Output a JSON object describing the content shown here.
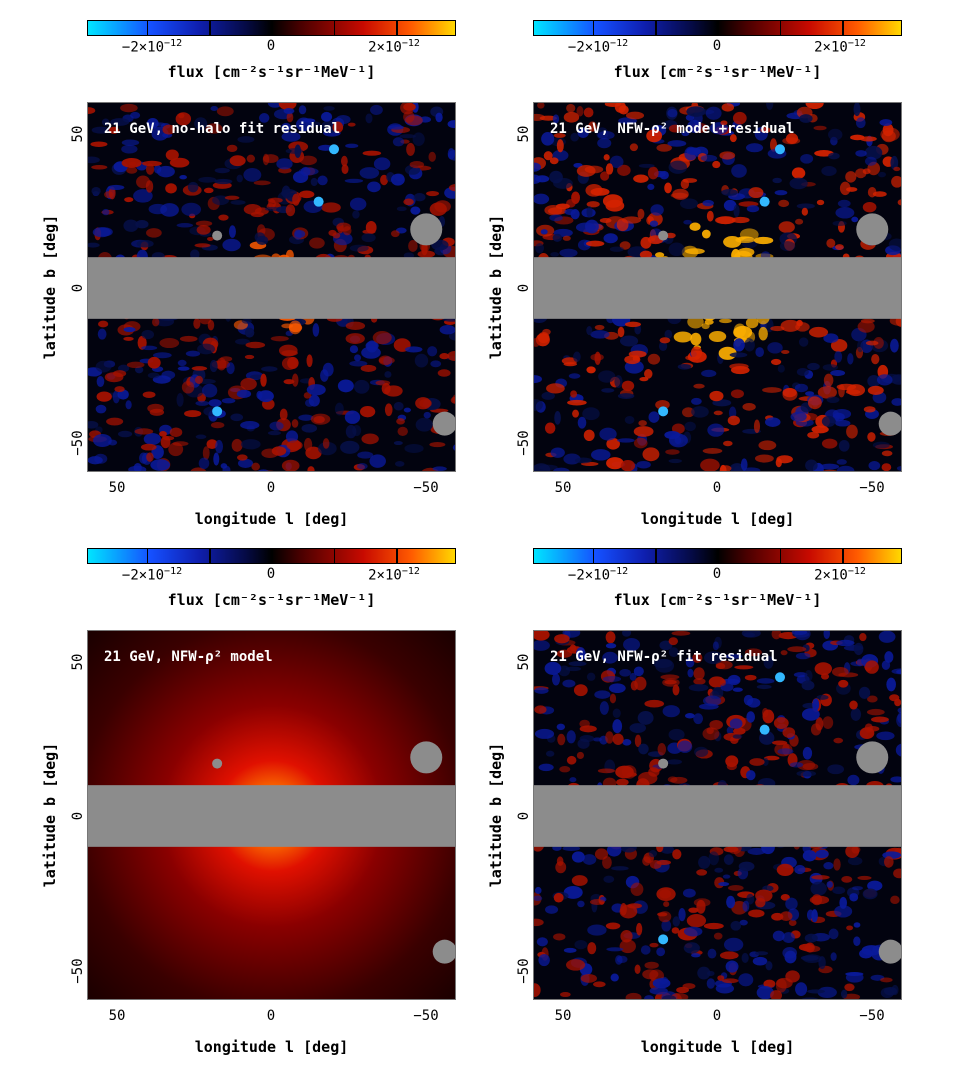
{
  "colorbar": {
    "tick_minus": "−2×10",
    "tick_zero": "0",
    "tick_plus": "2×10",
    "exponent": "−12",
    "label": "flux [cm⁻²s⁻¹sr⁻¹MeV⁻¹]"
  },
  "axes": {
    "xlabel": "longitude l [deg]",
    "ylabel": "latitude b [deg]",
    "xticks": [
      "50",
      "0",
      "−50"
    ],
    "yticks": [
      "50",
      "0",
      "−50"
    ],
    "xlim": [
      60,
      -60
    ],
    "ylim": [
      -60,
      60
    ],
    "masked_band_b": [
      -10,
      10
    ],
    "mask_color": "#8c8c8c"
  },
  "chart_data": [
    {
      "type": "heatmap",
      "title": "21 GeV, no-halo fit residual",
      "kind": "residual",
      "xlim": [
        60,
        -60
      ],
      "ylim": [
        -60,
        60
      ],
      "colorbar_range": [
        -3e-12,
        3e-12
      ]
    },
    {
      "type": "heatmap",
      "title": "21 GeV, NFW-ρ² model+residual",
      "kind": "model_plus_residual",
      "xlim": [
        60,
        -60
      ],
      "ylim": [
        -60,
        60
      ],
      "colorbar_range": [
        -3e-12,
        3e-12
      ]
    },
    {
      "type": "heatmap",
      "title": "21 GeV, NFW-ρ² model",
      "kind": "model",
      "xlim": [
        60,
        -60
      ],
      "ylim": [
        -60,
        60
      ],
      "colorbar_range": [
        -3e-12,
        3e-12
      ]
    },
    {
      "type": "heatmap",
      "title": "21 GeV, NFW-ρ² fit residual",
      "kind": "residual",
      "xlim": [
        60,
        -60
      ],
      "ylim": [
        -60,
        60
      ],
      "colorbar_range": [
        -3e-12,
        3e-12
      ]
    }
  ],
  "colors": {
    "cmap": [
      "#00e5ff",
      "#1550ff",
      "#0f1fb0",
      "#050a45",
      "#000000",
      "#4a0000",
      "#c80a00",
      "#ff5a00",
      "#ffd800"
    ]
  }
}
